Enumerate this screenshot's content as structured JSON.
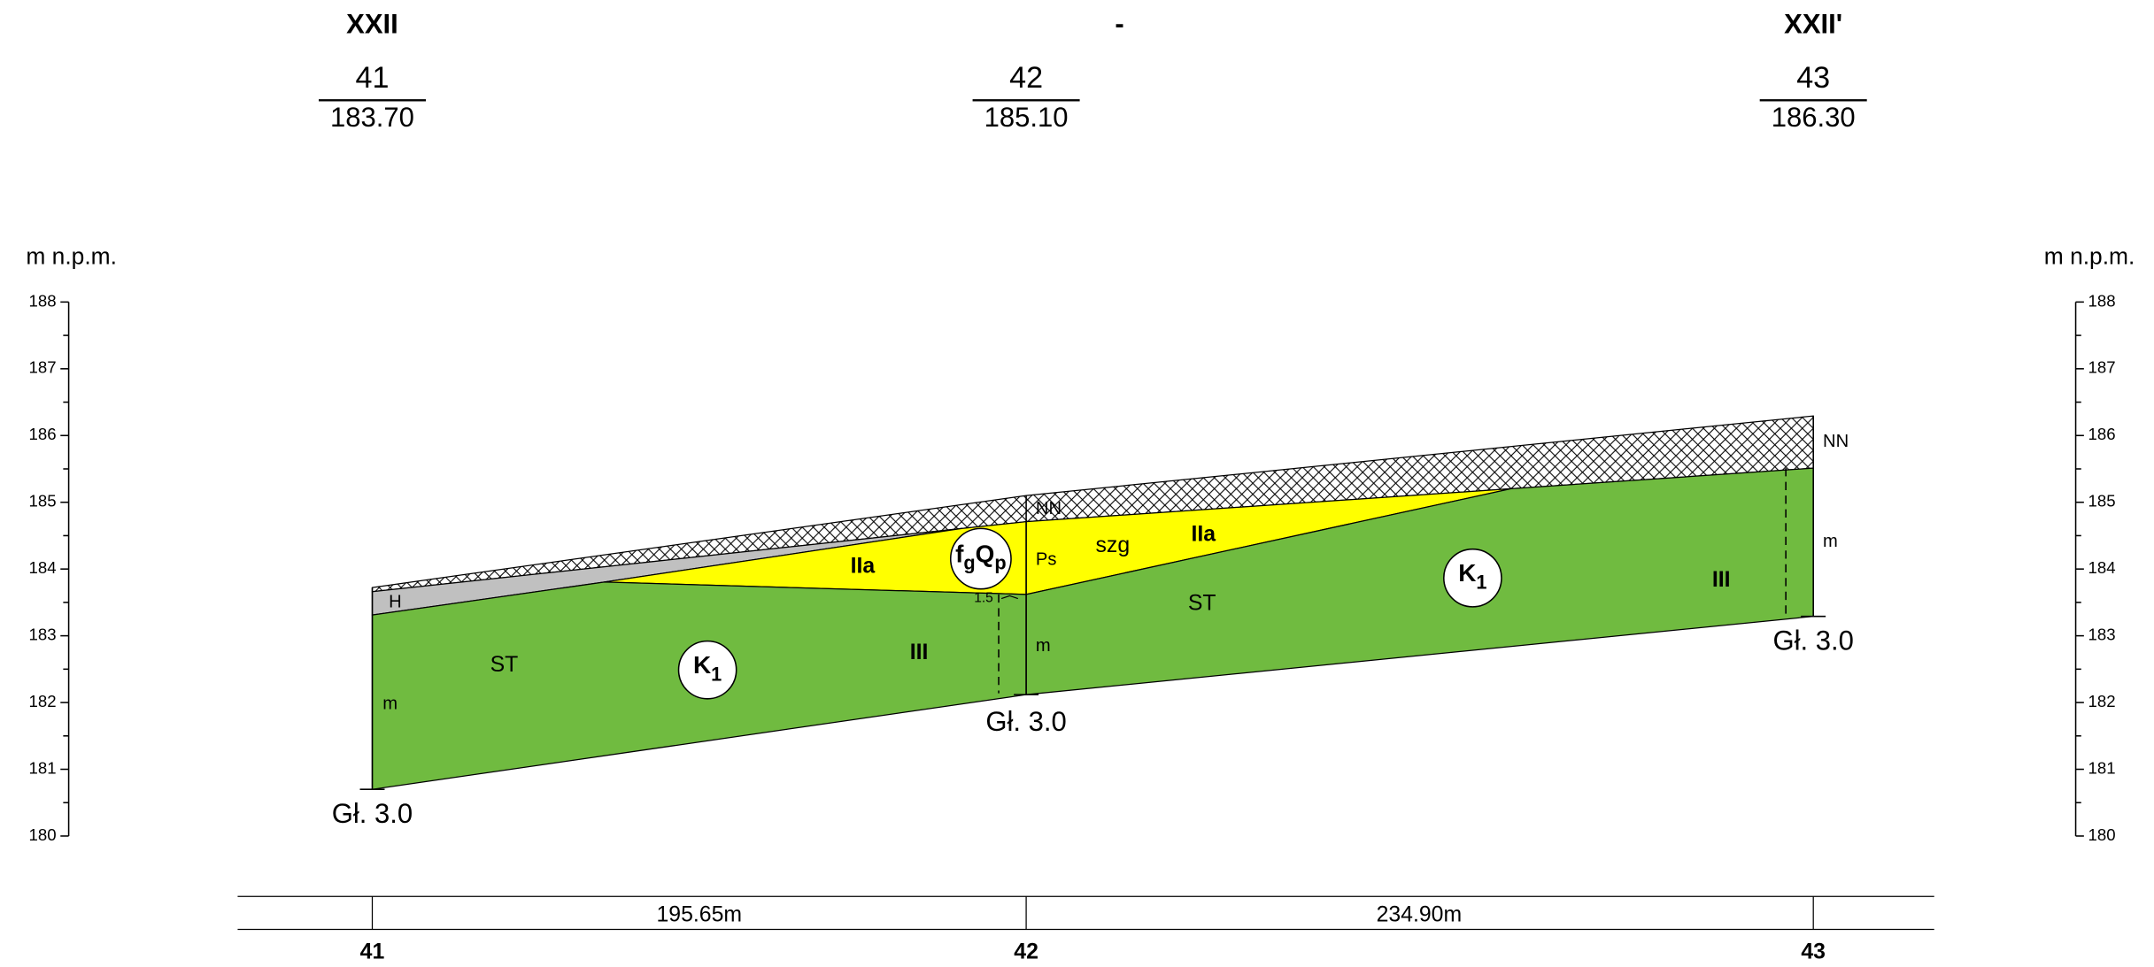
{
  "header": {
    "left": "XXII",
    "center": "-",
    "right": "XXII'"
  },
  "boreholes": [
    {
      "number": "41",
      "elevation": "183.70",
      "depth": "Gł. 3.0"
    },
    {
      "number": "42",
      "elevation": "185.10",
      "depth": "Gł. 3.0"
    },
    {
      "number": "43",
      "elevation": "186.30",
      "depth": "Gł. 3.0"
    }
  ],
  "axis": {
    "label": "m n.p.m.",
    "ticks": [
      188,
      187,
      186,
      185,
      184,
      183,
      182,
      181,
      180
    ]
  },
  "layers": {
    "h": "H",
    "st": "ST",
    "m": "m",
    "iia": "IIa",
    "iii": "III",
    "nn": "NN",
    "ps": "Ps",
    "szg": "szg",
    "water": "1.5"
  },
  "symbols": {
    "fgqp": [
      "f",
      "g",
      "Q",
      "p"
    ],
    "k1": [
      "K",
      "1"
    ]
  },
  "distances": [
    "195.65m",
    "234.90m"
  ]
}
